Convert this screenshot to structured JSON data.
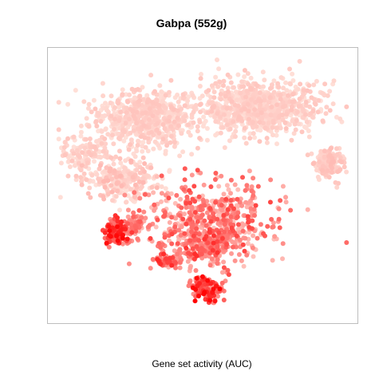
{
  "chart_data": {
    "type": "scatter",
    "title": "Gabpa (552g)",
    "xlabel": "Gene set activity (AUC)",
    "ylabel": "",
    "xlim": [
      0,
      100
    ],
    "ylim": [
      0,
      100
    ],
    "axes_visible": false,
    "grid": false,
    "legend": "none",
    "color_scale": {
      "low": "#ffe4dc",
      "high": "#ff0000"
    },
    "clusters": [
      {
        "cx": 30,
        "cy": 76,
        "sx": 13,
        "sy": 7.5,
        "n": 700,
        "min": 0.02,
        "max": 0.14
      },
      {
        "cx": 70,
        "cy": 80,
        "sx": 14,
        "sy": 7.5,
        "n": 850,
        "min": 0.02,
        "max": 0.14
      },
      {
        "cx": 10,
        "cy": 62,
        "sx": 5.5,
        "sy": 5,
        "n": 120,
        "min": 0.02,
        "max": 0.14
      },
      {
        "cx": 23,
        "cy": 52,
        "sx": 9,
        "sy": 5.5,
        "n": 260,
        "min": 0.02,
        "max": 0.2
      },
      {
        "cx": 93,
        "cy": 59,
        "sx": 3.5,
        "sy": 4.5,
        "n": 140,
        "min": 0.05,
        "max": 0.18
      },
      {
        "cx": 27,
        "cy": 35,
        "sx": 1.8,
        "sy": 2.5,
        "n": 55,
        "min": 0.2,
        "max": 0.6
      },
      {
        "cx": 21,
        "cy": 32,
        "sx": 3,
        "sy": 3.5,
        "n": 140,
        "min": 0.35,
        "max": 1.0
      },
      {
        "cx": 52,
        "cy": 35,
        "sx": 16,
        "sy": 11,
        "n": 620,
        "min": 0.15,
        "max": 0.7
      },
      {
        "cx": 38,
        "cy": 21,
        "sx": 3.5,
        "sy": 2,
        "n": 70,
        "min": 0.3,
        "max": 0.85
      },
      {
        "cx": 52,
        "cy": 27,
        "sx": 6,
        "sy": 4,
        "n": 110,
        "min": 0.3,
        "max": 0.8
      },
      {
        "cx": 51,
        "cy": 10,
        "sx": 3.8,
        "sy": 3.4,
        "n": 150,
        "min": 0.35,
        "max": 1.0
      }
    ]
  }
}
